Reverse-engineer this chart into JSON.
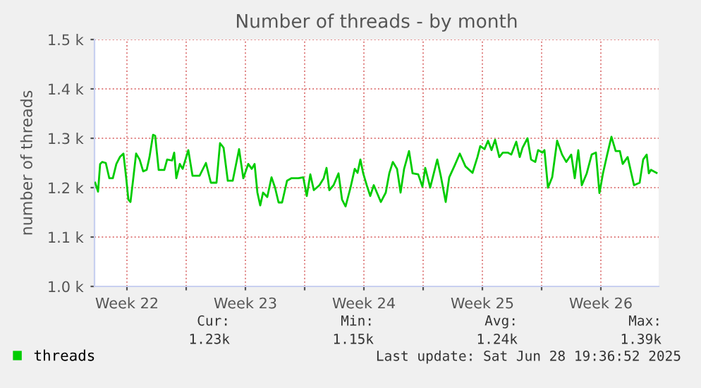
{
  "chart_data": {
    "type": "line",
    "title": "Number of threads - by month",
    "ylabel": "number of threads",
    "xlim": [
      "2025-05-26T14:00",
      "2025-06-28T22:00"
    ],
    "ylim": [
      1000,
      1500
    ],
    "xticks": [
      {
        "value": "2025-05-28T12:00",
        "label": "Week 22"
      },
      {
        "value": "2025-06-01",
        "label": null
      },
      {
        "value": "2025-06-04T12:00",
        "label": "Week 23"
      },
      {
        "value": "2025-06-08",
        "label": null
      },
      {
        "value": "2025-06-11T12:00",
        "label": "Week 24"
      },
      {
        "value": "2025-06-15",
        "label": null
      },
      {
        "value": "2025-06-18T12:00",
        "label": "Week 25"
      },
      {
        "value": "2025-06-22",
        "label": null
      },
      {
        "value": "2025-06-25T12:00",
        "label": "Week 26"
      }
    ],
    "yticks": [
      {
        "value": 1000,
        "label": "1.0 k"
      },
      {
        "value": 1100,
        "label": "1.1 k"
      },
      {
        "value": 1200,
        "label": "1.2 k"
      },
      {
        "value": 1300,
        "label": "1.3 k"
      },
      {
        "value": 1400,
        "label": "1.4 k"
      },
      {
        "value": 1500,
        "label": "1.5 k"
      }
    ],
    "grid": true,
    "legend": "bottom left",
    "marker": "none",
    "line_style": "solid",
    "series": [
      {
        "name": "threads",
        "color": "#00cc00",
        "x": [
          "2025-05-26T15:00",
          "2025-05-26T19:00",
          "2025-05-26T22:00",
          "2025-05-27T01:00",
          "2025-05-27T06:00",
          "2025-05-27T11:00",
          "2025-05-27T16:00",
          "2025-05-27T21:00",
          "2025-05-28T02:00",
          "2025-05-28T07:00",
          "2025-05-28T11:00",
          "2025-05-28T14:00",
          "2025-05-28T17:00",
          "2025-05-28T21:00",
          "2025-05-29T01:00",
          "2025-05-29T06:00",
          "2025-05-29T11:00",
          "2025-05-29T16:00",
          "2025-05-29T20:00",
          "2025-05-30T01:00",
          "2025-05-30T04:00",
          "2025-05-30T09:00",
          "2025-05-30T17:00",
          "2025-05-30T21:00",
          "2025-05-31T04:00",
          "2025-05-31T07:00",
          "2025-05-31T10:00",
          "2025-05-31T15:00",
          "2025-05-31T19:00",
          "2025-06-01T03:00",
          "2025-06-01T09:00",
          "2025-06-01T19:00",
          "2025-06-02T04:00",
          "2025-06-02T11:00",
          "2025-06-02T19:00",
          "2025-06-03T00:00",
          "2025-06-03T05:00",
          "2025-06-03T11:00",
          "2025-06-03T18:00",
          "2025-06-04T03:00",
          "2025-06-04T09:00",
          "2025-06-04T16:00",
          "2025-06-04T21:00",
          "2025-06-05T01:00",
          "2025-06-05T05:00",
          "2025-06-05T09:00",
          "2025-06-05T13:00",
          "2025-06-05T19:00",
          "2025-06-06T01:00",
          "2025-06-06T06:00",
          "2025-06-06T11:00",
          "2025-06-06T16:00",
          "2025-06-06T23:00",
          "2025-06-07T05:00",
          "2025-06-07T15:00",
          "2025-06-07T22:00",
          "2025-06-08T03:00",
          "2025-06-08T08:00",
          "2025-06-08T13:00",
          "2025-06-08T21:00",
          "2025-06-09T03:00",
          "2025-06-09T07:00",
          "2025-06-09T11:00",
          "2025-06-09T17:00",
          "2025-06-10T00:00",
          "2025-06-10T05:00",
          "2025-06-10T10:00",
          "2025-06-10T17:00",
          "2025-06-10T23:00",
          "2025-06-11T03:00",
          "2025-06-11T07:00",
          "2025-06-11T11:00",
          "2025-06-11T16:00",
          "2025-06-11T21:00",
          "2025-06-12T02:00",
          "2025-06-12T12:00",
          "2025-06-12T19:00",
          "2025-06-13T00:00",
          "2025-06-13T05:00",
          "2025-06-13T11:00",
          "2025-06-13T16:00",
          "2025-06-13T21:00",
          "2025-06-14T04:00",
          "2025-06-14T09:00",
          "2025-06-14T17:00",
          "2025-06-14T23:00",
          "2025-06-15T03:00",
          "2025-06-15T10:00",
          "2025-06-15T20:00",
          "2025-06-16T01:00",
          "2025-06-16T08:00",
          "2025-06-16T13:00",
          "2025-06-16T21:00",
          "2025-06-17T04:00",
          "2025-06-17T12:00",
          "2025-06-17T22:00",
          "2025-06-18T05:00",
          "2025-06-18T09:00",
          "2025-06-18T15:00",
          "2025-06-18T20:00",
          "2025-06-19T01:00",
          "2025-06-19T06:00",
          "2025-06-19T12:00",
          "2025-06-19T17:00",
          "2025-06-20T00:00",
          "2025-06-20T05:00",
          "2025-06-20T12:00",
          "2025-06-20T17:00",
          "2025-06-20T21:00",
          "2025-06-21T04:00",
          "2025-06-21T09:00",
          "2025-06-21T15:00",
          "2025-06-21T19:00",
          "2025-06-22T01:00",
          "2025-06-22T04:00",
          "2025-06-22T09:00",
          "2025-06-22T15:00",
          "2025-06-22T22:00",
          "2025-06-23T05:00",
          "2025-06-23T11:00",
          "2025-06-23T18:00",
          "2025-06-23T23:00",
          "2025-06-24T04:00",
          "2025-06-24T09:00",
          "2025-06-24T16:00",
          "2025-06-24T23:00",
          "2025-06-25T05:00",
          "2025-06-25T10:00",
          "2025-06-25T15:00",
          "2025-06-25T21:00",
          "2025-06-26T03:00",
          "2025-06-26T09:00",
          "2025-06-26T15:00",
          "2025-06-26T19:00",
          "2025-06-27T02:00",
          "2025-06-27T05:00",
          "2025-06-27T11:00",
          "2025-06-27T19:00",
          "2025-06-28T00:00",
          "2025-06-28T05:00",
          "2025-06-28T08:00",
          "2025-06-28T11:00",
          "2025-06-28T19:00"
        ],
        "values": [
          1210,
          1192,
          1248,
          1252,
          1250,
          1219,
          1219,
          1248,
          1262,
          1269,
          1219,
          1176,
          1171,
          1219,
          1269,
          1257,
          1233,
          1236,
          1262,
          1307,
          1305,
          1236,
          1236,
          1257,
          1255,
          1271,
          1219,
          1248,
          1238,
          1276,
          1224,
          1224,
          1250,
          1210,
          1210,
          1290,
          1281,
          1214,
          1214,
          1278,
          1219,
          1248,
          1238,
          1248,
          1190,
          1164,
          1190,
          1181,
          1221,
          1200,
          1170,
          1170,
          1214,
          1219,
          1219,
          1221,
          1183,
          1227,
          1195,
          1205,
          1219,
          1240,
          1195,
          1205,
          1229,
          1176,
          1162,
          1200,
          1238,
          1230,
          1257,
          1229,
          1205,
          1183,
          1205,
          1171,
          1190,
          1229,
          1252,
          1238,
          1190,
          1238,
          1274,
          1229,
          1227,
          1202,
          1240,
          1200,
          1257,
          1224,
          1171,
          1221,
          1246,
          1269,
          1243,
          1230,
          1262,
          1284,
          1278,
          1295,
          1276,
          1297,
          1262,
          1271,
          1271,
          1267,
          1293,
          1262,
          1281,
          1300,
          1257,
          1252,
          1276,
          1271,
          1276,
          1200,
          1221,
          1295,
          1267,
          1252,
          1267,
          1219,
          1276,
          1205,
          1229,
          1267,
          1271,
          1189,
          1229,
          1267,
          1303,
          1274,
          1274,
          1248,
          1262,
          1243,
          1205,
          1210,
          1257,
          1267,
          1229,
          1236,
          1230
        ]
      }
    ],
    "annotations": [
      "Cur:",
      "1.23k",
      "Min:",
      "1.15k",
      "Avg:",
      "1.24k",
      "Max:",
      "1.39k",
      "Last update: Sat Jun 28 19:36:52 2025"
    ]
  }
}
